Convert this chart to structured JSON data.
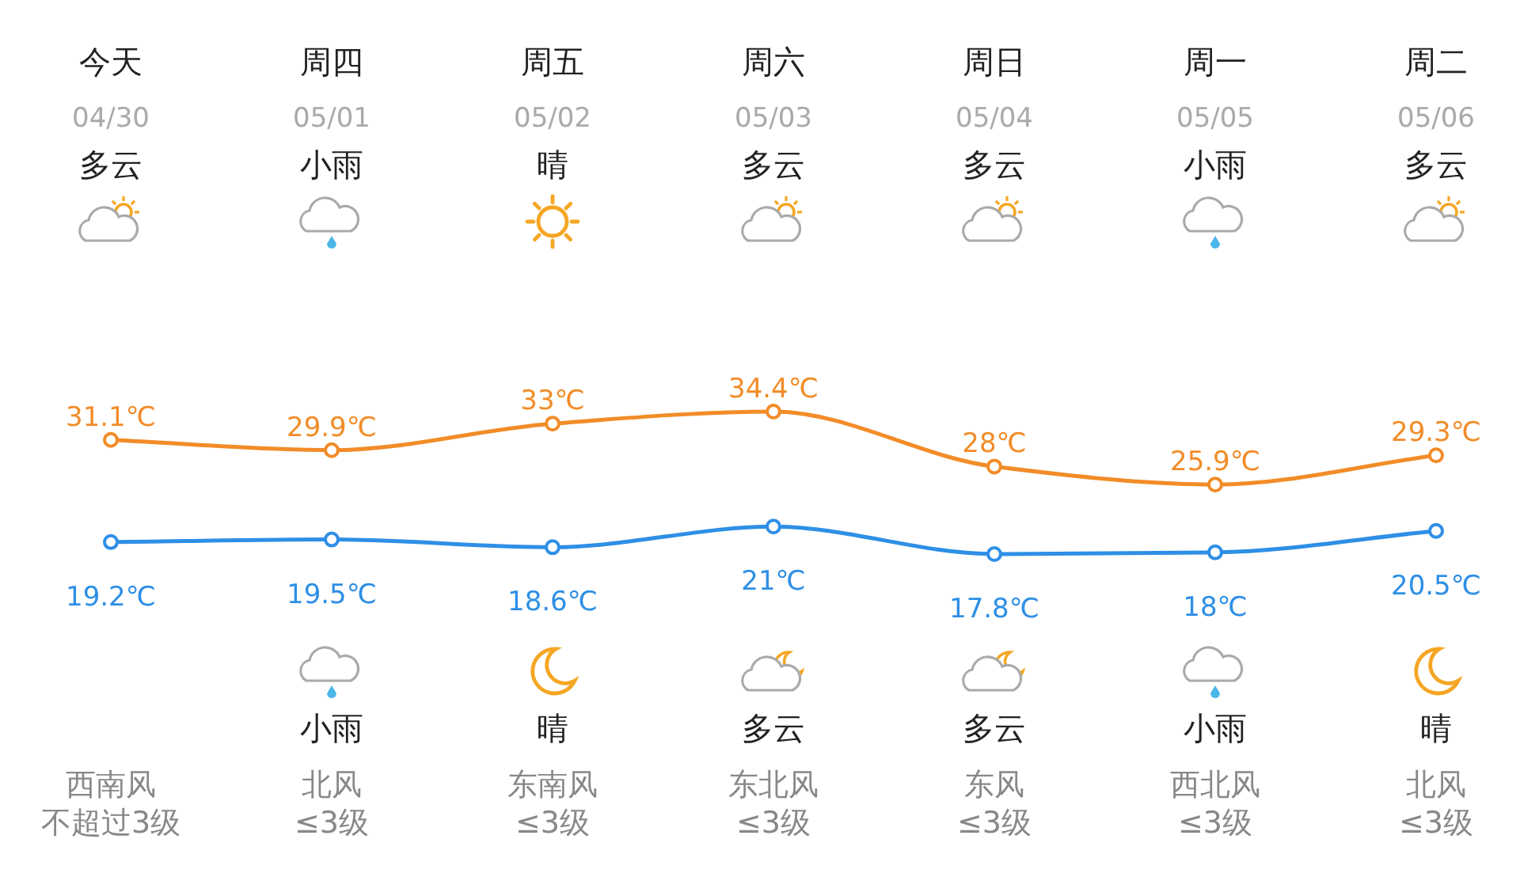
{
  "chart_data": {
    "type": "line",
    "categories": [
      "今天",
      "周四",
      "周五",
      "周六",
      "周日",
      "周一",
      "周二"
    ],
    "series": [
      {
        "color": "#f28c28",
        "values": [
          31.1,
          29.9,
          33,
          34.4,
          28,
          25.9,
          29.3
        ],
        "value_labels": [
          "31.1℃",
          "29.9℃",
          "33℃",
          "34.4℃",
          "28℃",
          "25.9℃",
          "29.3℃"
        ]
      },
      {
        "color": "#2e8fe6",
        "values": [
          19.2,
          19.5,
          18.6,
          21,
          17.8,
          18,
          20.5
        ],
        "value_labels": [
          "19.2℃",
          "19.5℃",
          "18.6℃",
          "21℃",
          "17.8℃",
          "18℃",
          "20.5℃"
        ]
      }
    ],
    "marker": "circle",
    "line_style": "solid",
    "annotations": [
      "04/30",
      "05/01",
      "05/02",
      "05/03",
      "05/04",
      "05/05",
      "05/06",
      "多云",
      "小雨",
      "晴",
      "多云",
      "多云",
      "小雨",
      "多云",
      "小雨",
      "晴",
      "多云",
      "多云",
      "小雨",
      "晴",
      "西南风",
      "北风",
      "东南风",
      "东北风",
      "东风",
      "西北风",
      "北风",
      "不超过3级",
      "≤3级",
      "≤3级",
      "≤3级",
      "≤3级",
      "≤3级",
      "≤3级"
    ]
  }
}
